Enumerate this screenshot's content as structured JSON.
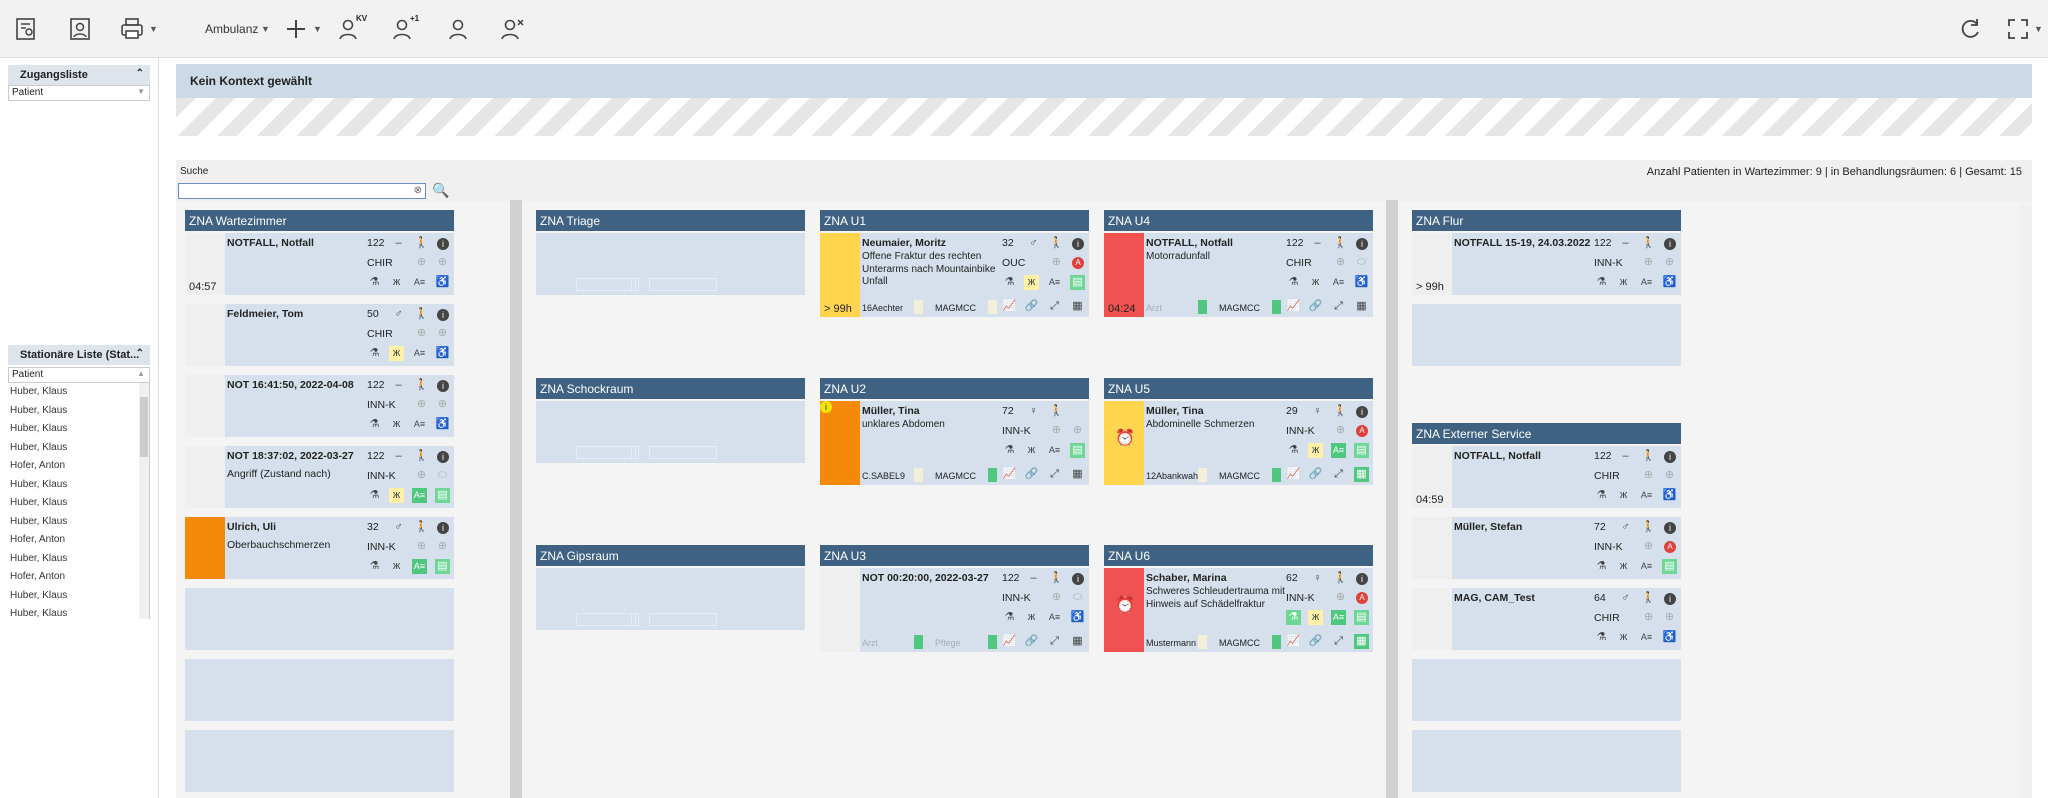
{
  "toolbar": {
    "context_select": "Ambulanz",
    "icons": [
      "patient-list-icon",
      "patient-card-icon",
      "print-icon",
      "add-icon",
      "patient-kv-icon",
      "patient-add-icon",
      "patient-icon",
      "patient-remove-icon",
      "refresh-icon",
      "fullscreen-icon"
    ],
    "kv_badge": "KV",
    "plus_badge": "+1"
  },
  "left": {
    "zugangsliste": {
      "title": "Zugangsliste",
      "filter_placeholder": "Patient"
    },
    "stationaer": {
      "title": "Stationäre Liste (Stat...",
      "filter_placeholder": "Patient",
      "items": [
        "Huber, Klaus",
        "Huber, Klaus",
        "Huber, Klaus",
        "Huber, Klaus",
        "Hofer, Anton",
        "Huber, Klaus",
        "Huber, Klaus",
        "Huber, Klaus",
        "Hofer, Anton",
        "Huber, Klaus",
        "Hofer, Anton",
        "Huber, Klaus",
        "Huber, Klaus",
        "Huber, Klaus"
      ]
    }
  },
  "context": {
    "title": "Kein Kontext gewählt"
  },
  "search": {
    "label": "Suche",
    "value": ""
  },
  "counts": "Anzahl Patienten in Wartezimmer: 9 | in Behandlungsräumen: 6 | Gesamt: 15",
  "rooms": {
    "wartezimmer": {
      "title": "ZNA Wartezimmer",
      "cards": [
        {
          "name": "NOTFALL, Notfall",
          "age": "122",
          "sex": "–",
          "dept": "CHIR",
          "desc": "",
          "time": "04:57"
        },
        {
          "name": "Feldmeier, Tom",
          "age": "50",
          "sex": "♂",
          "dept": "CHIR",
          "desc": "",
          "time": ""
        },
        {
          "name": "NOT 16:41:50, 2022-04-08",
          "age": "122",
          "sex": "–",
          "dept": "INN-K",
          "desc": "",
          "time": ""
        },
        {
          "name": "NOT 18:37:02, 2022-03-27",
          "age": "122",
          "sex": "–",
          "dept": "INN-K",
          "desc": "Angriff (Zustand nach)",
          "time": ""
        },
        {
          "name": "Ulrich, Uli",
          "age": "32",
          "sex": "♂",
          "dept": "INN-K",
          "desc": "Oberbauchschmerzen",
          "time": ""
        }
      ]
    },
    "triage": {
      "title": "ZNA Triage"
    },
    "schockraum": {
      "title": "ZNA Schockraum"
    },
    "gipsraum": {
      "title": "ZNA Gipsraum"
    },
    "u1": {
      "title": "ZNA U1",
      "name": "Neumaier, Moritz",
      "age": "32",
      "sex": "♂",
      "dept": "OUC",
      "desc": "Offene Fraktur des rechten Unterarms nach Mountainbike Unfall",
      "time": "> 99h",
      "doc": "16Aechter",
      "nurse": "MAGMCC"
    },
    "u2": {
      "title": "ZNA U2",
      "name": "Müller, Tina",
      "age": "72",
      "sex": "♀",
      "dept": "INN-K",
      "desc": "unklares Abdomen",
      "time": "",
      "doc": "C.SABEL9",
      "nurse": "MAGMCC"
    },
    "u3": {
      "title": "ZNA U3",
      "name": "NOT 00:20:00, 2022-03-27",
      "age": "122",
      "sex": "–",
      "dept": "INN-K",
      "desc": "",
      "time": "",
      "doc": "Arzt",
      "nurse": "Pflege"
    },
    "u4": {
      "title": "ZNA U4",
      "name": "NOTFALL, Notfall",
      "age": "122",
      "sex": "–",
      "dept": "CHIR",
      "desc": "Motorradunfall",
      "time": "04:24",
      "doc": "Arzt",
      "nurse": "MAGMCC"
    },
    "u5": {
      "title": "ZNA U5",
      "name": "Müller, Tina",
      "age": "29",
      "sex": "♀",
      "dept": "INN-K",
      "desc": "Abdominelle Schmerzen",
      "time": "",
      "doc": "12Abankwah",
      "nurse": "MAGMCC"
    },
    "u6": {
      "title": "ZNA U6",
      "name": "Schaber, Marina",
      "age": "62",
      "sex": "♀",
      "dept": "INN-K",
      "desc": "Schweres Schleudertrauma mit Hinweis auf Schädelfraktur",
      "time": "",
      "doc": "Mustermann",
      "nurse": "MAGMCC"
    },
    "flur": {
      "title": "ZNA Flur",
      "cards": [
        {
          "name": "NOTFALL 15-19, 24.03.2022",
          "age": "122",
          "sex": "–",
          "dept": "INN-K",
          "time": "> 99h"
        }
      ]
    },
    "extern": {
      "title": "ZNA Externer Service",
      "cards": [
        {
          "name": "NOTFALL, Notfall",
          "age": "122",
          "sex": "–",
          "dept": "CHIR",
          "time": "04:59"
        },
        {
          "name": "Müller, Stefan",
          "age": "72",
          "sex": "♂",
          "dept": "INN-K",
          "time": ""
        },
        {
          "name": "MAG, CAM_Test",
          "age": "64",
          "sex": "♂",
          "dept": "CHIR",
          "time": ""
        }
      ]
    }
  },
  "colors": {
    "header": "#3f6283",
    "card": "#d5e0ec",
    "orange": "#f58a0a",
    "yellow": "#ffd54d",
    "red": "#f05252",
    "green": "#4fc77e"
  }
}
